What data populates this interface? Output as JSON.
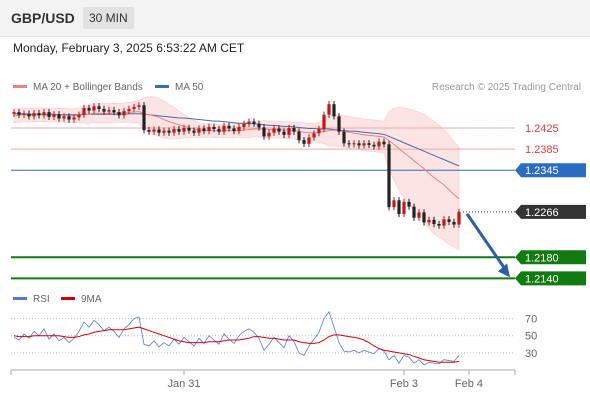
{
  "header": {
    "symbol": "GBP/USD",
    "timeframe": "30 MIN"
  },
  "datetime": "Monday, February 3, 2025 6:53:22 AM CET",
  "legend": {
    "ma20_label": "MA 20 + Bollinger Bands",
    "ma50_label": "MA 50",
    "copyright": "Research © 2025 Trading Central",
    "ma20_color": "#f08080",
    "ma50_color": "#3a6fb0"
  },
  "rsi_legend": {
    "rsi_label": "RSI",
    "ma9_label": "9MA",
    "rsi_color": "#5577dd",
    "ma9_color": "#dd0000"
  },
  "chart_data": {
    "type": "candlestick",
    "price_range": [
      1.2118,
      1.2478
    ],
    "x_ticks": [
      "Jan 31",
      "Feb 3",
      "Feb 4"
    ],
    "levels": [
      {
        "value": 1.2425,
        "label": "1.2425",
        "kind": "resistance",
        "color": "#e23b3b"
      },
      {
        "value": 1.2385,
        "label": "1.2385",
        "kind": "resistance",
        "color": "#e23b3b"
      },
      {
        "value": 1.2345,
        "label": "1.2345",
        "kind": "pivot",
        "color": "#2a6cc0"
      },
      {
        "value": 1.2266,
        "label": "1.2266",
        "kind": "last",
        "color": "#333333"
      },
      {
        "value": 1.218,
        "label": "1.2180",
        "kind": "target",
        "color": "#117a11"
      },
      {
        "value": 1.214,
        "label": "1.2140",
        "kind": "target",
        "color": "#117a11"
      }
    ],
    "closes": [
      1.2455,
      1.245,
      1.2452,
      1.2447,
      1.2453,
      1.2449,
      1.2455,
      1.2446,
      1.2451,
      1.2443,
      1.2447,
      1.2441,
      1.2445,
      1.245,
      1.2463,
      1.2458,
      1.2466,
      1.2461,
      1.2456,
      1.2459,
      1.2455,
      1.2449,
      1.2457,
      1.2461,
      1.2465,
      1.2468,
      1.2421,
      1.2418,
      1.2422,
      1.2416,
      1.242,
      1.2416,
      1.2423,
      1.2418,
      1.2425,
      1.242,
      1.2416,
      1.2424,
      1.2419,
      1.2427,
      1.2423,
      1.2418,
      1.2429,
      1.2424,
      1.2419,
      1.2427,
      1.2433,
      1.2437,
      1.2433,
      1.2426,
      1.2409,
      1.2416,
      1.2424,
      1.2418,
      1.2412,
      1.2425,
      1.2418,
      1.2402,
      1.2395,
      1.2407,
      1.2415,
      1.2423,
      1.245,
      1.247,
      1.2447,
      1.2418,
      1.2396,
      1.2394,
      1.2396,
      1.2392,
      1.2396,
      1.2393,
      1.239,
      1.2399,
      1.2394,
      1.2275,
      1.2288,
      1.2262,
      1.2285,
      1.2276,
      1.2255,
      1.2265,
      1.2246,
      1.2251,
      1.2243,
      1.224,
      1.2252,
      1.2247,
      1.2242,
      1.2266
    ],
    "ma20": [
      1.2448,
      1.2449,
      1.245,
      1.2449,
      1.245,
      1.245,
      1.245,
      1.2449,
      1.245,
      1.2449,
      1.2449,
      1.2448,
      1.2448,
      1.2449,
      1.245,
      1.2451,
      1.2453,
      1.2453,
      1.2453,
      1.2453,
      1.2454,
      1.2453,
      1.2454,
      1.2455,
      1.2455,
      1.2456,
      1.2452,
      1.245,
      1.2448,
      1.2445,
      1.2441,
      1.2437,
      1.2434,
      1.2431,
      1.2428,
      1.2426,
      1.2423,
      1.2421,
      1.242,
      1.2421,
      1.242,
      1.2419,
      1.242,
      1.242,
      1.242,
      1.242,
      1.2421,
      1.2422,
      1.2423,
      1.2423,
      1.2423,
      1.2422,
      1.2422,
      1.2422,
      1.2421,
      1.2421,
      1.242,
      1.2419,
      1.2417,
      1.2416,
      1.2416,
      1.2417,
      1.2418,
      1.242,
      1.2421,
      1.242,
      1.2418,
      1.2417,
      1.2415,
      1.2414,
      1.2412,
      1.2411,
      1.241,
      1.2409,
      1.2408,
      1.2401,
      1.2394,
      1.2386,
      1.2378,
      1.2371,
      1.2363,
      1.2355,
      1.2348,
      1.2339,
      1.2331,
      1.2324,
      1.2317,
      1.2308,
      1.2299,
      1.2291
    ],
    "ma50": [
      1.2452,
      1.2452,
      1.2452,
      1.2451,
      1.2451,
      1.2451,
      1.2451,
      1.2451,
      1.2451,
      1.245,
      1.245,
      1.245,
      1.245,
      1.245,
      1.2451,
      1.2451,
      1.2451,
      1.2451,
      1.2451,
      1.2451,
      1.2451,
      1.2451,
      1.2451,
      1.2452,
      1.2452,
      1.2452,
      1.2451,
      1.245,
      1.2449,
      1.2448,
      1.2447,
      1.2446,
      1.2445,
      1.2444,
      1.2444,
      1.2443,
      1.2442,
      1.2441,
      1.244,
      1.2439,
      1.2438,
      1.2438,
      1.2437,
      1.2436,
      1.2435,
      1.2434,
      1.2434,
      1.2433,
      1.2433,
      1.2432,
      1.2431,
      1.243,
      1.243,
      1.2429,
      1.2428,
      1.2428,
      1.2427,
      1.2426,
      1.2425,
      1.2424,
      1.2424,
      1.2423,
      1.2423,
      1.2423,
      1.2422,
      1.2421,
      1.242,
      1.2419,
      1.2419,
      1.2418,
      1.2417,
      1.2416,
      1.2415,
      1.2414,
      1.2413,
      1.2409,
      1.2405,
      1.2401,
      1.2397,
      1.2393,
      1.2389,
      1.2385,
      1.2381,
      1.2377,
      1.2373,
      1.2369,
      1.2365,
      1.2361,
      1.2357,
      1.2353
    ],
    "bollinger_width": [
      0.0013,
      0.0013,
      0.0013,
      0.0013,
      0.0013,
      0.0013,
      0.0013,
      0.0013,
      0.0013,
      0.0013,
      0.0013,
      0.0013,
      0.0013,
      0.0014,
      0.0016,
      0.0017,
      0.0018,
      0.0018,
      0.0018,
      0.0018,
      0.0018,
      0.0018,
      0.0018,
      0.0019,
      0.002,
      0.0021,
      0.003,
      0.0034,
      0.0036,
      0.0036,
      0.0035,
      0.0033,
      0.003,
      0.0026,
      0.0022,
      0.0019,
      0.0016,
      0.0014,
      0.0013,
      0.0013,
      0.0013,
      0.0013,
      0.0013,
      0.0013,
      0.0013,
      0.0013,
      0.0014,
      0.0015,
      0.0015,
      0.0015,
      0.0016,
      0.0016,
      0.0016,
      0.0016,
      0.0016,
      0.0016,
      0.0016,
      0.0017,
      0.0018,
      0.0018,
      0.0018,
      0.0019,
      0.0023,
      0.0029,
      0.003,
      0.003,
      0.003,
      0.003,
      0.003,
      0.003,
      0.003,
      0.003,
      0.003,
      0.003,
      0.003,
      0.0055,
      0.0068,
      0.0078,
      0.0085,
      0.009,
      0.0095,
      0.01,
      0.0103,
      0.0105,
      0.0106,
      0.0106,
      0.0105,
      0.0103,
      0.01,
      0.0097
    ],
    "rsi": {
      "ticks": [
        70,
        50,
        30
      ],
      "range": [
        10,
        80
      ],
      "rsi_values": [
        48,
        45,
        52,
        47,
        55,
        50,
        58,
        46,
        52,
        44,
        48,
        42,
        47,
        55,
        66,
        60,
        68,
        63,
        56,
        60,
        55,
        48,
        58,
        63,
        70,
        72,
        40,
        38,
        44,
        37,
        42,
        38,
        46,
        40,
        48,
        43,
        38,
        47,
        41,
        50,
        45,
        40,
        52,
        46,
        41,
        50,
        55,
        58,
        54,
        47,
        33,
        40,
        48,
        42,
        36,
        50,
        43,
        30,
        27,
        38,
        46,
        54,
        70,
        78,
        60,
        42,
        32,
        31,
        33,
        30,
        33,
        31,
        29,
        35,
        32,
        22,
        27,
        18,
        27,
        25,
        18,
        22,
        16,
        19,
        18,
        17,
        22,
        21,
        20,
        27
      ],
      "ma9_values": [
        50,
        49,
        49,
        49,
        50,
        50,
        50,
        50,
        50,
        50,
        49,
        48,
        48,
        49,
        51,
        52,
        54,
        55,
        56,
        57,
        57,
        57,
        57,
        58,
        59,
        60,
        58,
        56,
        54,
        52,
        50,
        48,
        46,
        44,
        43,
        42,
        42,
        42,
        42,
        43,
        43,
        43,
        44,
        45,
        45,
        45,
        46,
        47,
        49,
        49,
        48,
        47,
        47,
        46,
        45,
        45,
        45,
        43,
        42,
        41,
        41,
        42,
        45,
        49,
        51,
        51,
        50,
        49,
        48,
        47,
        45,
        42,
        38,
        35,
        33,
        32,
        31,
        30,
        29,
        28,
        26,
        24,
        22,
        21,
        20,
        19,
        19,
        19,
        19,
        20
      ]
    }
  }
}
